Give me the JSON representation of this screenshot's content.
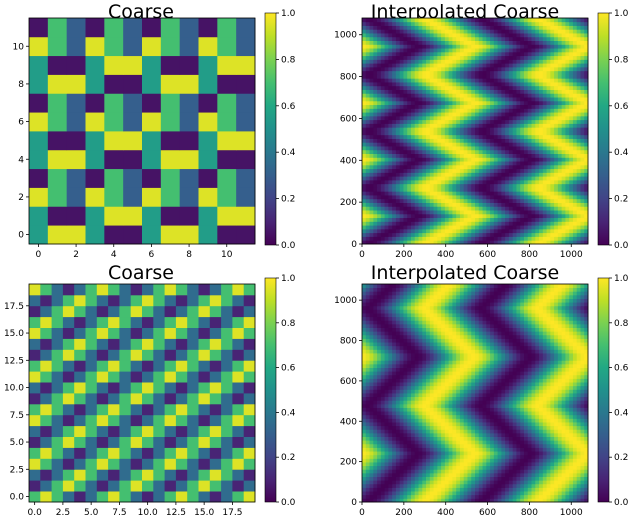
{
  "figure": {
    "colormap": "viridis",
    "colormap_stops": [
      "#440154",
      "#482475",
      "#414487",
      "#355f8d",
      "#2a788e",
      "#21918c",
      "#22a884",
      "#44bf70",
      "#7ad151",
      "#bddf26",
      "#fde725"
    ]
  },
  "chart_data": [
    {
      "type": "heatmap",
      "title": "Coarse",
      "grid_size": [
        12,
        12
      ],
      "xlim": [
        -0.5,
        11.5
      ],
      "ylim": [
        -0.5,
        11.5
      ],
      "x_ticks": [
        "0",
        "2",
        "4",
        "6",
        "8",
        "10"
      ],
      "y_ticks": [
        "0",
        "2",
        "4",
        "6",
        "8",
        "10"
      ],
      "x_tick_values": [
        0,
        2,
        4,
        6,
        8,
        10
      ],
      "y_tick_values": [
        0,
        2,
        4,
        6,
        8,
        10
      ],
      "colorbar_ticks": [
        "0.0",
        "0.2",
        "0.4",
        "0.6",
        "0.8",
        "1.0"
      ],
      "colorbar_tick_values": [
        0,
        0.2,
        0.4,
        0.6,
        0.8,
        1.0
      ],
      "vlim": [
        0,
        1
      ],
      "matrix": [
        [
          0.55,
          0.95,
          0.95,
          0.55,
          0.05,
          0.05,
          0.55,
          0.95,
          0.95,
          0.55,
          0.05,
          0.05
        ],
        [
          0.55,
          0.05,
          0.05,
          0.55,
          0.95,
          0.95,
          0.55,
          0.05,
          0.05,
          0.55,
          0.95,
          0.95
        ],
        [
          0.95,
          0.7,
          0.3,
          0.95,
          0.7,
          0.3,
          0.95,
          0.7,
          0.3,
          0.95,
          0.7,
          0.3
        ],
        [
          0.05,
          0.7,
          0.3,
          0.05,
          0.7,
          0.3,
          0.05,
          0.7,
          0.3,
          0.05,
          0.7,
          0.3
        ],
        [
          0.55,
          0.95,
          0.95,
          0.55,
          0.05,
          0.05,
          0.55,
          0.95,
          0.95,
          0.55,
          0.05,
          0.05
        ],
        [
          0.55,
          0.05,
          0.05,
          0.55,
          0.95,
          0.95,
          0.55,
          0.05,
          0.05,
          0.55,
          0.95,
          0.95
        ],
        [
          0.95,
          0.7,
          0.3,
          0.95,
          0.7,
          0.3,
          0.95,
          0.7,
          0.3,
          0.95,
          0.7,
          0.3
        ],
        [
          0.05,
          0.7,
          0.3,
          0.05,
          0.7,
          0.3,
          0.05,
          0.7,
          0.3,
          0.05,
          0.7,
          0.3
        ],
        [
          0.55,
          0.95,
          0.95,
          0.55,
          0.05,
          0.05,
          0.55,
          0.95,
          0.95,
          0.55,
          0.05,
          0.05
        ],
        [
          0.55,
          0.05,
          0.05,
          0.55,
          0.95,
          0.95,
          0.55,
          0.05,
          0.05,
          0.55,
          0.95,
          0.95
        ],
        [
          0.95,
          0.7,
          0.3,
          0.95,
          0.7,
          0.3,
          0.95,
          0.7,
          0.3,
          0.95,
          0.7,
          0.3
        ],
        [
          0.05,
          0.7,
          0.3,
          0.05,
          0.7,
          0.3,
          0.05,
          0.7,
          0.3,
          0.05,
          0.7,
          0.3
        ]
      ]
    },
    {
      "type": "heatmap",
      "title": "Interpolated Coarse",
      "pattern": "chevron-waves",
      "period_x": 540,
      "period_y": 270,
      "xlim": [
        0,
        1080
      ],
      "ylim": [
        0,
        1080
      ],
      "x_ticks": [
        "0",
        "200",
        "400",
        "600",
        "800",
        "1000"
      ],
      "y_ticks": [
        "0",
        "200",
        "400",
        "600",
        "800",
        "1000"
      ],
      "x_tick_values": [
        0,
        200,
        400,
        600,
        800,
        1000
      ],
      "y_tick_values": [
        0,
        200,
        400,
        600,
        800,
        1000
      ],
      "colorbar_ticks": [
        "0.0",
        "0.2",
        "0.4",
        "0.6",
        "0.8",
        "1.0"
      ],
      "colorbar_tick_values": [
        0,
        0.2,
        0.4,
        0.6,
        0.8,
        1.0
      ],
      "vlim": [
        0,
        1
      ]
    },
    {
      "type": "heatmap",
      "title": "Coarse",
      "grid_size": [
        20,
        20
      ],
      "xlim": [
        -0.5,
        19.5
      ],
      "ylim": [
        -0.5,
        19.5
      ],
      "x_ticks": [
        "0.0",
        "2.5",
        "5.0",
        "7.5",
        "10.0",
        "12.5",
        "15.0",
        "17.5"
      ],
      "y_ticks": [
        "0.0",
        "2.5",
        "5.0",
        "7.5",
        "10.0",
        "12.5",
        "15.0",
        "17.5"
      ],
      "x_tick_values": [
        0,
        2.5,
        5,
        7.5,
        10,
        12.5,
        15,
        17.5
      ],
      "y_tick_values": [
        0,
        2.5,
        5,
        7.5,
        10,
        12.5,
        15,
        17.5
      ],
      "colorbar_ticks": [
        "0.0",
        "0.2",
        "0.4",
        "0.6",
        "0.8",
        "1.0"
      ],
      "colorbar_tick_values": [
        0,
        0.2,
        0.4,
        0.6,
        0.8,
        1.0
      ],
      "vlim": [
        0,
        1
      ],
      "matrix": [
        [
          0.7,
          0.95,
          0.7,
          0.35,
          0.1,
          0.35,
          0.7,
          0.95,
          0.7,
          0.35,
          0.1,
          0.35,
          0.7,
          0.95,
          0.7,
          0.35,
          0.1,
          0.35,
          0.7,
          0.95
        ],
        [
          0.1,
          0.35,
          0.7,
          0.95,
          0.7,
          0.35,
          0.1,
          0.35,
          0.7,
          0.95,
          0.7,
          0.35,
          0.1,
          0.35,
          0.7,
          0.95,
          0.7,
          0.35,
          0.1,
          0.35
        ],
        [
          0.35,
          0.1,
          0.35,
          0.7,
          0.95,
          0.7,
          0.35,
          0.1,
          0.35,
          0.7,
          0.95,
          0.7,
          0.35,
          0.1,
          0.35,
          0.7,
          0.95,
          0.7,
          0.35,
          0.1
        ],
        [
          0.95,
          0.7,
          0.35,
          0.1,
          0.35,
          0.7,
          0.95,
          0.7,
          0.35,
          0.1,
          0.35,
          0.7,
          0.95,
          0.7,
          0.35,
          0.1,
          0.35,
          0.7,
          0.95,
          0.7
        ],
        [
          0.7,
          0.95,
          0.7,
          0.35,
          0.1,
          0.35,
          0.7,
          0.95,
          0.7,
          0.35,
          0.1,
          0.35,
          0.7,
          0.95,
          0.7,
          0.35,
          0.1,
          0.35,
          0.7,
          0.95
        ],
        [
          0.1,
          0.35,
          0.7,
          0.95,
          0.7,
          0.35,
          0.1,
          0.35,
          0.7,
          0.95,
          0.7,
          0.35,
          0.1,
          0.35,
          0.7,
          0.95,
          0.7,
          0.35,
          0.1,
          0.35
        ],
        [
          0.35,
          0.1,
          0.35,
          0.7,
          0.95,
          0.7,
          0.35,
          0.1,
          0.35,
          0.7,
          0.95,
          0.7,
          0.35,
          0.1,
          0.35,
          0.7,
          0.95,
          0.7,
          0.35,
          0.1
        ],
        [
          0.95,
          0.7,
          0.35,
          0.1,
          0.35,
          0.7,
          0.95,
          0.7,
          0.35,
          0.1,
          0.35,
          0.7,
          0.95,
          0.7,
          0.35,
          0.1,
          0.35,
          0.7,
          0.95,
          0.7
        ],
        [
          0.7,
          0.95,
          0.7,
          0.35,
          0.1,
          0.35,
          0.7,
          0.95,
          0.7,
          0.35,
          0.1,
          0.35,
          0.7,
          0.95,
          0.7,
          0.35,
          0.1,
          0.35,
          0.7,
          0.95
        ],
        [
          0.1,
          0.35,
          0.7,
          0.95,
          0.7,
          0.35,
          0.1,
          0.35,
          0.7,
          0.95,
          0.7,
          0.35,
          0.1,
          0.35,
          0.7,
          0.95,
          0.7,
          0.35,
          0.1,
          0.35
        ],
        [
          0.35,
          0.1,
          0.35,
          0.7,
          0.95,
          0.7,
          0.35,
          0.1,
          0.35,
          0.7,
          0.95,
          0.7,
          0.35,
          0.1,
          0.35,
          0.7,
          0.95,
          0.7,
          0.35,
          0.1
        ],
        [
          0.95,
          0.7,
          0.35,
          0.1,
          0.35,
          0.7,
          0.95,
          0.7,
          0.35,
          0.1,
          0.35,
          0.7,
          0.95,
          0.7,
          0.35,
          0.1,
          0.35,
          0.7,
          0.95,
          0.7
        ],
        [
          0.7,
          0.95,
          0.7,
          0.35,
          0.1,
          0.35,
          0.7,
          0.95,
          0.7,
          0.35,
          0.1,
          0.35,
          0.7,
          0.95,
          0.7,
          0.35,
          0.1,
          0.35,
          0.7,
          0.95
        ],
        [
          0.1,
          0.35,
          0.7,
          0.95,
          0.7,
          0.35,
          0.1,
          0.35,
          0.7,
          0.95,
          0.7,
          0.35,
          0.1,
          0.35,
          0.7,
          0.95,
          0.7,
          0.35,
          0.1,
          0.35
        ],
        [
          0.35,
          0.1,
          0.35,
          0.7,
          0.95,
          0.7,
          0.35,
          0.1,
          0.35,
          0.7,
          0.95,
          0.7,
          0.35,
          0.1,
          0.35,
          0.7,
          0.95,
          0.7,
          0.35,
          0.1
        ],
        [
          0.95,
          0.7,
          0.35,
          0.1,
          0.35,
          0.7,
          0.95,
          0.7,
          0.35,
          0.1,
          0.35,
          0.7,
          0.95,
          0.7,
          0.35,
          0.1,
          0.35,
          0.7,
          0.95,
          0.7
        ],
        [
          0.7,
          0.95,
          0.7,
          0.35,
          0.1,
          0.35,
          0.7,
          0.95,
          0.7,
          0.35,
          0.1,
          0.35,
          0.7,
          0.95,
          0.7,
          0.35,
          0.1,
          0.35,
          0.7,
          0.95
        ],
        [
          0.1,
          0.35,
          0.7,
          0.95,
          0.7,
          0.35,
          0.1,
          0.35,
          0.7,
          0.95,
          0.7,
          0.35,
          0.1,
          0.35,
          0.7,
          0.95,
          0.7,
          0.35,
          0.1,
          0.35
        ],
        [
          0.35,
          0.1,
          0.35,
          0.7,
          0.95,
          0.7,
          0.35,
          0.1,
          0.35,
          0.7,
          0.95,
          0.7,
          0.35,
          0.1,
          0.35,
          0.7,
          0.95,
          0.7,
          0.35,
          0.1
        ],
        [
          0.95,
          0.7,
          0.35,
          0.1,
          0.35,
          0.7,
          0.95,
          0.7,
          0.35,
          0.1,
          0.35,
          0.7,
          0.95,
          0.7,
          0.35,
          0.1,
          0.35,
          0.7,
          0.95,
          0.7
        ]
      ]
    },
    {
      "type": "heatmap",
      "title": "Interpolated Coarse",
      "pattern": "chevron-waves",
      "period_x": 540,
      "period_y": 480,
      "xlim": [
        0,
        1080
      ],
      "ylim": [
        0,
        1080
      ],
      "x_ticks": [
        "0",
        "200",
        "400",
        "600",
        "800",
        "1000"
      ],
      "y_ticks": [
        "0",
        "200",
        "400",
        "600",
        "800",
        "1000"
      ],
      "x_tick_values": [
        0,
        200,
        400,
        600,
        800,
        1000
      ],
      "y_tick_values": [
        0,
        200,
        400,
        600,
        800,
        1000
      ],
      "colorbar_ticks": [
        "0.0",
        "0.2",
        "0.4",
        "0.6",
        "0.8",
        "1.0"
      ],
      "colorbar_tick_values": [
        0,
        0.2,
        0.4,
        0.6,
        0.8,
        1.0
      ],
      "vlim": [
        0,
        1
      ]
    }
  ]
}
